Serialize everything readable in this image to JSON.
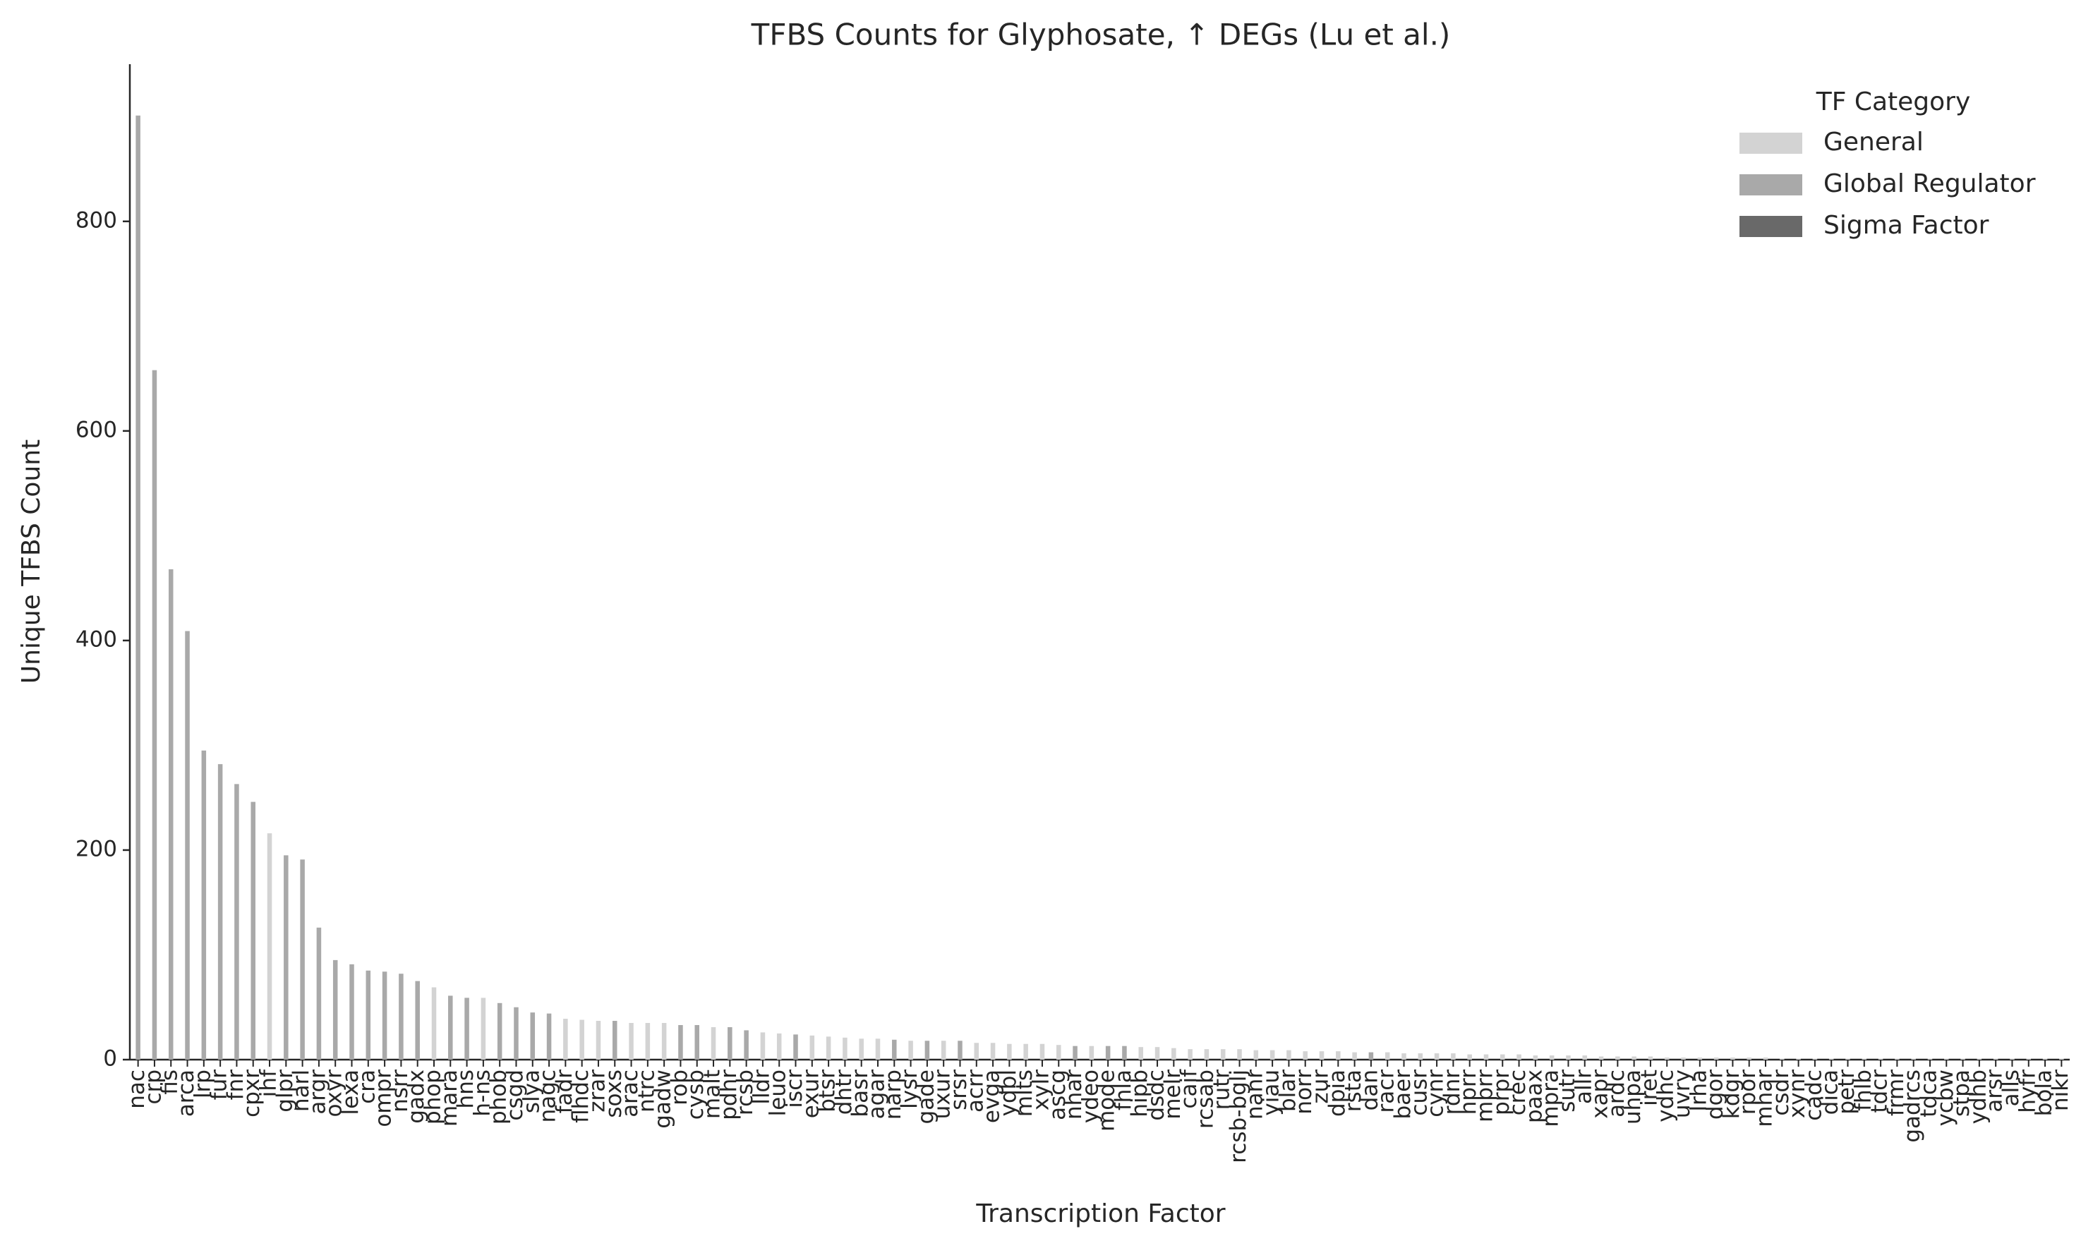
{
  "chart_data": {
    "type": "bar",
    "title": "TFBS Counts for Glyphosate, ↑ DEGs (Lu et al.)",
    "x_label": "Transcription Factor",
    "y_label": "Unique TFBS Count",
    "ylim": [
      0,
      950
    ],
    "yticks": [
      0,
      200,
      400,
      600,
      800
    ],
    "legend": {
      "title": "TF Category",
      "position": "upper right",
      "entries": [
        {
          "name": "General",
          "color": "#d3d3d3"
        },
        {
          "name": "Global Regulator",
          "color": "#a9a9a9"
        },
        {
          "name": "Sigma Factor",
          "color": "#696969"
        }
      ]
    },
    "categories": [
      "nac",
      "crp",
      "fis",
      "arca",
      "lrp",
      "fur",
      "fnr",
      "cpxr",
      "ihf",
      "glpr",
      "narl",
      "argr",
      "oxyr",
      "lexa",
      "cra",
      "ompr",
      "nsrr",
      "gadx",
      "phop",
      "mara",
      "hns",
      "h-ns",
      "phob",
      "csgd",
      "slya",
      "nagc",
      "fadr",
      "flhdc",
      "zrar",
      "soxs",
      "arac",
      "ntrc",
      "gadw",
      "rob",
      "cysb",
      "malt",
      "pdhr",
      "rcsb",
      "lldr",
      "leuo",
      "iscr",
      "exur",
      "btsr",
      "dhtr",
      "basr",
      "agar",
      "narp",
      "lysr",
      "gade",
      "uxur",
      "srsr",
      "acrr",
      "evga",
      "ydbl",
      "mlts",
      "xylr",
      "ascg",
      "nhar",
      "ydeo",
      "mode",
      "fhla",
      "hipb",
      "dsdc",
      "melr",
      "caif",
      "rcsab",
      "rutr",
      "rcsb-bglj",
      "nanr",
      "yiau",
      "blar",
      "norr",
      "zur",
      "dpia",
      "rsta",
      "dan",
      "racr",
      "baer",
      "cusr",
      "cynr",
      "rdnr",
      "hprr",
      "mprr",
      "prpr",
      "crec",
      "paax",
      "mpra",
      "sutr",
      "allr",
      "xapr",
      "ardc",
      "uhpa",
      "iret",
      "ydhc",
      "uvry",
      "lrha",
      "dgor",
      "kdgr",
      "rpor",
      "mhar",
      "csdr",
      "xynr",
      "cadc",
      "dica",
      "petr",
      "fhlb",
      "tdcr",
      "frmr",
      "gadrcs",
      "tdca",
      "ycbw",
      "stpa",
      "ydhb",
      "arsr",
      "alls",
      "hyfr",
      "bola",
      "nikr"
    ],
    "values": [
      901,
      658,
      468,
      409,
      295,
      282,
      263,
      246,
      216,
      195,
      191,
      126,
      95,
      91,
      85,
      84,
      82,
      75,
      69,
      61,
      59,
      59,
      54,
      50,
      45,
      44,
      39,
      38,
      37,
      37,
      35,
      35,
      35,
      33,
      33,
      31,
      31,
      28,
      26,
      25,
      24,
      23,
      22,
      21,
      20,
      20,
      19,
      18,
      18,
      18,
      18,
      16,
      16,
      15,
      15,
      15,
      14,
      13,
      13,
      13,
      13,
      12,
      12,
      11,
      10,
      10,
      10,
      10,
      9,
      9,
      9,
      8,
      8,
      8,
      7,
      7,
      7,
      6,
      6,
      6,
      6,
      5,
      5,
      5,
      5,
      4,
      4,
      4,
      4,
      3,
      3,
      3,
      3,
      2,
      2,
      2,
      2,
      2,
      2,
      2,
      1,
      1,
      1,
      1,
      1,
      1,
      1,
      1,
      1,
      1,
      1,
      1,
      1,
      1,
      1,
      1,
      1,
      1
    ],
    "hue": [
      "Global Regulator",
      "Global Regulator",
      "Global Regulator",
      "Global Regulator",
      "Global Regulator",
      "Global Regulator",
      "Global Regulator",
      "Global Regulator",
      "General",
      "Global Regulator",
      "Global Regulator",
      "Global Regulator",
      "Global Regulator",
      "Global Regulator",
      "Global Regulator",
      "Global Regulator",
      "Global Regulator",
      "Global Regulator",
      "General",
      "Global Regulator",
      "Global Regulator",
      "General",
      "Global Regulator",
      "Global Regulator",
      "Global Regulator",
      "Global Regulator",
      "General",
      "General",
      "General",
      "Global Regulator",
      "General",
      "General",
      "General",
      "Global Regulator",
      "Global Regulator",
      "General",
      "Global Regulator",
      "Global Regulator",
      "General",
      "General",
      "Global Regulator",
      "General",
      "General",
      "General",
      "General",
      "General",
      "Global Regulator",
      "General",
      "Global Regulator",
      "General",
      "Global Regulator",
      "General",
      "General",
      "General",
      "General",
      "General",
      "General",
      "Global Regulator",
      "General",
      "Global Regulator",
      "Global Regulator",
      "General",
      "General",
      "General",
      "General",
      "General",
      "General",
      "General",
      "General",
      "General",
      "General",
      "General",
      "General",
      "General",
      "General",
      "Global Regulator",
      "General",
      "General",
      "General",
      "General",
      "General",
      "General",
      "General",
      "General",
      "General",
      "General",
      "General",
      "General",
      "General",
      "General",
      "General",
      "General",
      "General",
      "General",
      "General",
      "General",
      "General",
      "General",
      "General",
      "General",
      "General",
      "General",
      "General",
      "General",
      "General",
      "General",
      "General",
      "General",
      "General",
      "General",
      "General",
      "General",
      "General",
      "General",
      "General",
      "General",
      "General",
      "General"
    ]
  }
}
